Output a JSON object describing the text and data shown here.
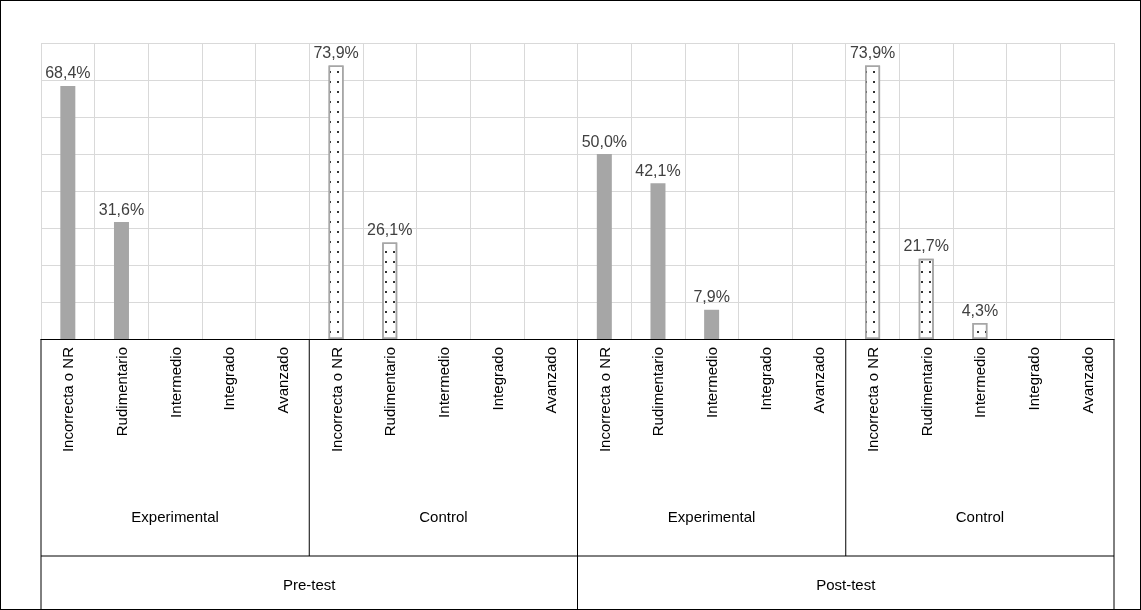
{
  "chart_data": {
    "type": "bar",
    "categories": [
      "Incorrecta o NR",
      "Rudimentario",
      "Intermedio",
      "Integrado",
      "Avanzado",
      "Incorrecta o NR",
      "Rudimentario",
      "Intermedio",
      "Integrado",
      "Avanzado",
      "Incorrecta o NR",
      "Rudimentario",
      "Intermedio",
      "Integrado",
      "Avanzado",
      "Incorrecta o NR",
      "Rudimentario",
      "Intermedio",
      "Integrado",
      "Avanzado"
    ],
    "values": [
      68.4,
      31.6,
      null,
      null,
      null,
      73.9,
      26.1,
      null,
      null,
      null,
      50.0,
      42.1,
      7.9,
      null,
      null,
      73.9,
      21.7,
      4.3,
      null,
      null
    ],
    "value_labels": [
      "68,4%",
      "31,6%",
      null,
      null,
      null,
      "73,9%",
      "26,1%",
      null,
      null,
      null,
      "50,0%",
      "42,1%",
      "7,9%",
      null,
      null,
      "73,9%",
      "21,7%",
      "4,3%",
      null,
      null
    ],
    "colors": [
      "#a6a6a6",
      "#a6a6a6",
      "#a6a6a6",
      "#a6a6a6",
      "#a6a6a6",
      "#ffffff",
      "#ffffff",
      "#ffffff",
      "#ffffff",
      "#ffffff",
      "#a6a6a6",
      "#a6a6a6",
      "#a6a6a6",
      "#a6a6a6",
      "#a6a6a6",
      "#ffffff",
      "#ffffff",
      "#ffffff",
      "#ffffff",
      "#ffffff"
    ],
    "ylim": [
      0,
      80
    ],
    "yticks": [
      {
        "value": 0,
        "label": null
      },
      {
        "value": 10,
        "label": null
      },
      {
        "value": 20,
        "label": null
      },
      {
        "value": 30,
        "label": null
      },
      {
        "value": 40,
        "label": null
      },
      {
        "value": 50,
        "label": null
      },
      {
        "value": 60,
        "label": null
      },
      {
        "value": 70,
        "label": null
      },
      {
        "value": 80,
        "label": null
      }
    ],
    "tick_labels": "x",
    "grid": true,
    "annotations": [
      "Experimental",
      "Control",
      "Experimental",
      "Control",
      "Pre-test",
      "Post-test"
    ]
  }
}
